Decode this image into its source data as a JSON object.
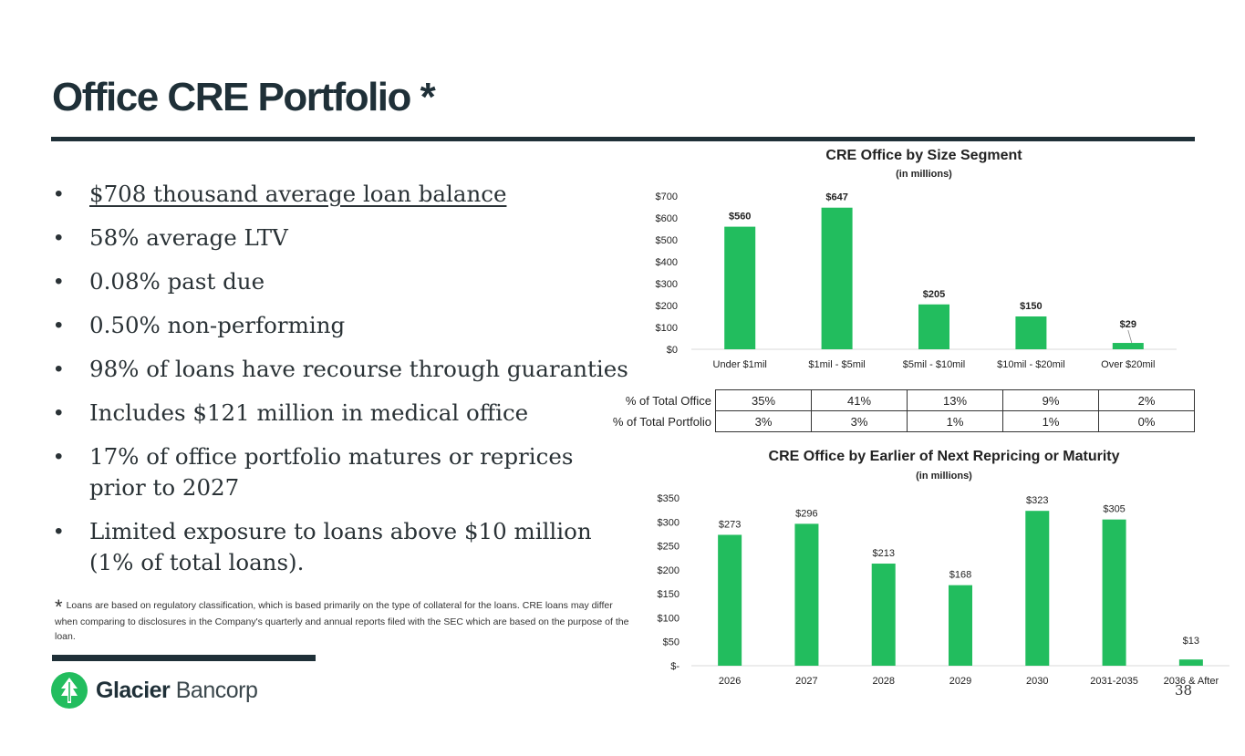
{
  "page": {
    "title": "Office CRE Portfolio *",
    "page_number": "38",
    "colors": {
      "bar": "#22bd5e",
      "dark": "#1f3038"
    }
  },
  "bullets": [
    "$708 thousand average loan balance",
    "58% average LTV",
    "0.08% past due",
    "0.50% non-performing",
    "98% of loans have recourse through guaranties",
    "Includes $121 million in medical office",
    "17% of office portfolio matures or reprices prior to 2027",
    "Limited exposure to loans above $10 million (1% of total loans)."
  ],
  "footnote": {
    "star": "*",
    "text": "Loans are based on regulatory classification, which is based primarily on the type of collateral for the loans. CRE loans may differ when comparing to disclosures in the Company's quarterly and annual reports filed with the SEC which are based on the purpose of the loan."
  },
  "logo": {
    "brand_bold": "Glacier",
    "brand_light": "Bancorp",
    "icon": "glacier-mountain-logo-icon"
  },
  "chart_data": [
    {
      "type": "bar",
      "title": "CRE Office by Size Segment",
      "subtitle": "(in millions)",
      "categories": [
        "Under $1mil",
        "$1mil - $5mil",
        "$5mil - $10mil",
        "$10mil - $20mil",
        "Over $20mil"
      ],
      "values": [
        560,
        647,
        205,
        150,
        29
      ],
      "data_labels": [
        "$560",
        "$647",
        "$205",
        "$150",
        "$29"
      ],
      "ylim": [
        0,
        700
      ],
      "yticks": [
        0,
        100,
        200,
        300,
        400,
        500,
        600,
        700
      ],
      "ytick_labels": [
        "$0",
        "$100",
        "$200",
        "$300",
        "$400",
        "$500",
        "$600",
        "$700"
      ],
      "grid": false,
      "table": {
        "rows": [
          {
            "label": "% of Total Office",
            "values": [
              "35%",
              "41%",
              "13%",
              "9%",
              "2%"
            ]
          },
          {
            "label": "% of Total Portfolio",
            "values": [
              "3%",
              "3%",
              "1%",
              "1%",
              "0%"
            ]
          }
        ]
      }
    },
    {
      "type": "bar",
      "title": "CRE Office by Earlier of Next Repricing or Maturity",
      "subtitle": "(in millions)",
      "categories": [
        "2026",
        "2027",
        "2028",
        "2029",
        "2030",
        "2031-2035",
        "2036 & After"
      ],
      "values": [
        273,
        296,
        213,
        168,
        323,
        305,
        13
      ],
      "data_labels": [
        "$273",
        "$296",
        "$213",
        "$168",
        "$323",
        "$305",
        "$13"
      ],
      "ylim": [
        0,
        350
      ],
      "yticks": [
        0,
        50,
        100,
        150,
        200,
        250,
        300,
        350
      ],
      "ytick_labels": [
        "$-",
        "$50",
        "$100",
        "$150",
        "$200",
        "$250",
        "$300",
        "$350"
      ],
      "grid": false
    }
  ]
}
